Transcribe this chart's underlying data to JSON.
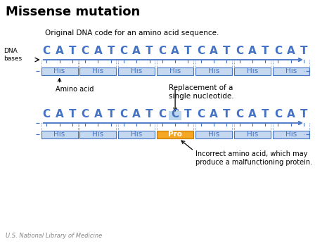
{
  "title": "Missense mutation",
  "subtitle_original": "Original DNA code for an amino acid sequence.",
  "subtitle_mutated": "Replacement of a\nsingle nucleotide.",
  "dna_label": "DNA\nbases",
  "original_bases": [
    "C",
    "A",
    "T",
    "C",
    "A",
    "T",
    "C",
    "A",
    "T",
    "C",
    "A",
    "T",
    "C",
    "A",
    "T",
    "C",
    "A",
    "T",
    "C",
    "A",
    "T"
  ],
  "mutated_bases": [
    "C",
    "A",
    "T",
    "C",
    "A",
    "T",
    "C",
    "A",
    "T",
    "C",
    "C",
    "T",
    "C",
    "A",
    "T",
    "C",
    "A",
    "T",
    "C",
    "A",
    "T"
  ],
  "mutation_index": 10,
  "his_boxes_original": [
    "His",
    "His",
    "His",
    "His",
    "His",
    "His",
    "His"
  ],
  "his_boxes_mutated": [
    "His",
    "His",
    "His",
    "Pro",
    "His",
    "His",
    "His"
  ],
  "pro_index": 3,
  "amino_acid_label": "Amino acid",
  "incorrect_label": "Incorrect amino acid, which may\nproduce a malfunctioning protein.",
  "footer": "U.S. National Library of Medicine",
  "dna_color": "#4472C4",
  "his_fill": "#C5D8F0",
  "his_border": "#4472C4",
  "pro_fill": "#F5A623",
  "pro_border": "#C47A00",
  "bg_color": "#FFFFFF",
  "text_color": "#000000",
  "title_fontsize": 13,
  "base_fontsize": 11,
  "his_fontsize": 7.5
}
